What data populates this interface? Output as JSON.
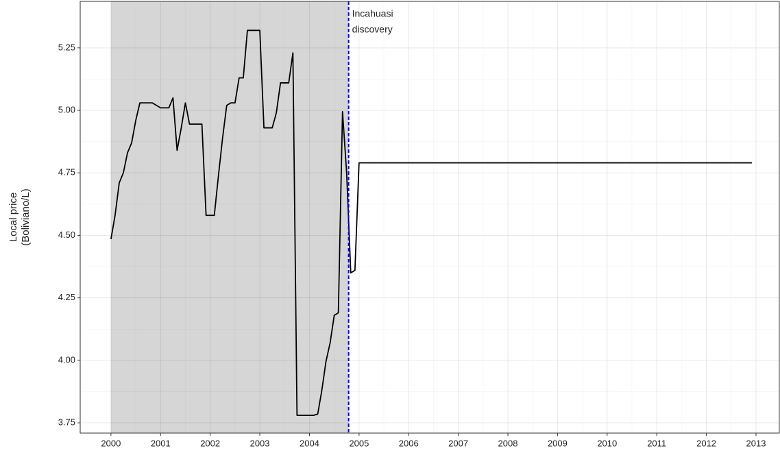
{
  "chart_data": {
    "type": "line",
    "y_label": [
      "Local price",
      "(Boliviano/L)"
    ],
    "annotation": [
      "Incahuasi",
      "discovery"
    ],
    "event_line": {
      "x": 2004.79,
      "color": "#0000ff"
    },
    "shade": {
      "x": [
        2000,
        2004.79
      ],
      "color": "#d6d6d6"
    },
    "x": [
      2000,
      2000.083,
      2000.167,
      2000.25,
      2000.333,
      2000.417,
      2000.5,
      2000.583,
      2000.667,
      2000.75,
      2000.833,
      2000.917,
      2001,
      2001.083,
      2001.167,
      2001.25,
      2001.333,
      2001.417,
      2001.5,
      2001.583,
      2001.667,
      2001.75,
      2001.833,
      2001.917,
      2002,
      2002.083,
      2002.167,
      2002.25,
      2002.333,
      2002.417,
      2002.5,
      2002.583,
      2002.667,
      2002.75,
      2002.833,
      2002.917,
      2003,
      2003.083,
      2003.167,
      2003.25,
      2003.333,
      2003.417,
      2003.5,
      2003.583,
      2003.667,
      2003.75,
      2003.833,
      2003.917,
      2004,
      2004.083,
      2004.167,
      2004.25,
      2004.333,
      2004.417,
      2004.5,
      2004.583,
      2004.667,
      2004.75,
      2004.833,
      2004.917,
      2005,
      2012.917
    ],
    "series": [
      {
        "color": "#000000",
        "values": [
          4.485,
          4.58,
          4.71,
          4.75,
          4.83,
          4.87,
          4.96,
          5.03,
          5.03,
          5.03,
          5.03,
          5.02,
          5.01,
          5.01,
          5.01,
          5.05,
          4.84,
          4.93,
          5.03,
          4.945,
          4.945,
          4.945,
          4.945,
          4.58,
          4.58,
          4.58,
          4.74,
          4.89,
          5.02,
          5.03,
          5.03,
          5.13,
          5.13,
          5.32,
          5.32,
          5.32,
          5.32,
          4.93,
          4.93,
          4.93,
          4.99,
          5.11,
          5.11,
          5.11,
          5.23,
          3.78,
          3.78,
          3.78,
          3.78,
          3.78,
          3.785,
          3.88,
          3.995,
          4.07,
          4.18,
          4.19,
          4.995,
          4.75,
          4.35,
          4.36,
          4.79,
          4.79
        ]
      }
    ],
    "xlim": [
      1999.38,
      2013.47
    ],
    "ylim": [
      3.709,
      5.436
    ],
    "xticks": [
      2000,
      2001,
      2002,
      2003,
      2004,
      2005,
      2006,
      2007,
      2008,
      2009,
      2010,
      2011,
      2012,
      2013
    ],
    "yticks": [
      3.75,
      {
        "value": 4,
        "label": "4.00"
      },
      4.25,
      {
        "value": 4.5,
        "label": "4.50"
      },
      4.75,
      {
        "value": 5,
        "label": "5.00"
      },
      5.25
    ],
    "grid": true
  }
}
